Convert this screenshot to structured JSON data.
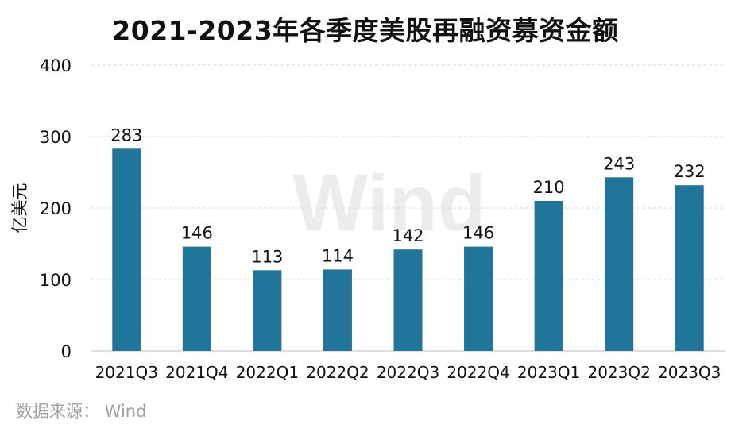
{
  "colors": {
    "bar": "#21759B",
    "grid": "#d9d9d9",
    "axis": "#bfbfbf",
    "text": "#111111",
    "source_text": "#a0a0a0",
    "watermark": "#ececec"
  },
  "watermark": "Wind",
  "source": "数据来源： Wind",
  "chart_data": {
    "type": "bar",
    "title": "2021-2023年各季度美股再融资募资金额",
    "ylabel": "亿美元",
    "xlabel": "",
    "ylim": [
      0,
      400
    ],
    "yticks": [
      0,
      100,
      200,
      300,
      400
    ],
    "grid": true,
    "categories": [
      "2021Q3",
      "2021Q4",
      "2022Q1",
      "2022Q2",
      "2022Q3",
      "2022Q4",
      "2023Q1",
      "2023Q2",
      "2023Q3"
    ],
    "values": [
      283,
      146,
      113,
      114,
      142,
      146,
      210,
      243,
      232
    ],
    "data_labels": true
  }
}
